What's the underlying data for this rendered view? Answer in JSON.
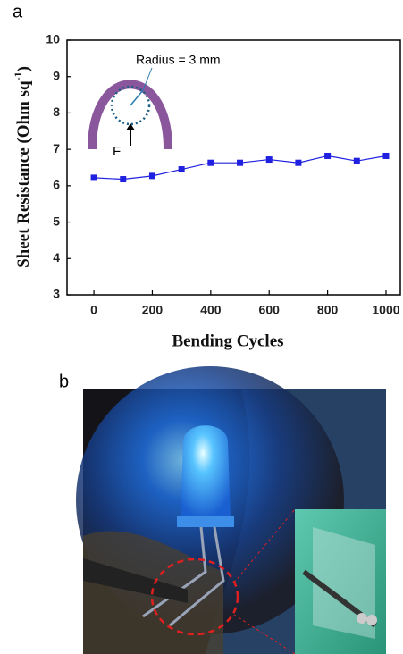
{
  "panel_labels": [
    "a",
    "b"
  ],
  "chart_data": {
    "type": "line",
    "xlabel": "Bending Cycles",
    "ylabel": {
      "text": "Sheet Resistance (Ohm sq",
      "sup": "-1",
      "end": ")"
    },
    "x": [
      0,
      100,
      200,
      300,
      400,
      500,
      600,
      700,
      800,
      900,
      1000
    ],
    "series": [
      {
        "name": null,
        "color": "#2020e0",
        "values": [
          6.22,
          6.18,
          6.27,
          6.45,
          6.63,
          6.63,
          6.72,
          6.63,
          6.82,
          6.68,
          6.82
        ]
      }
    ],
    "xlim": [
      -92,
      1049
    ],
    "ylim": [
      3,
      10
    ],
    "xticks": [
      0,
      200,
      400,
      600,
      800,
      1000
    ],
    "yticks": [
      3,
      4,
      5,
      6,
      7,
      8,
      9,
      10
    ],
    "annotations": [
      "Radius = 3 mm",
      "F"
    ]
  }
}
